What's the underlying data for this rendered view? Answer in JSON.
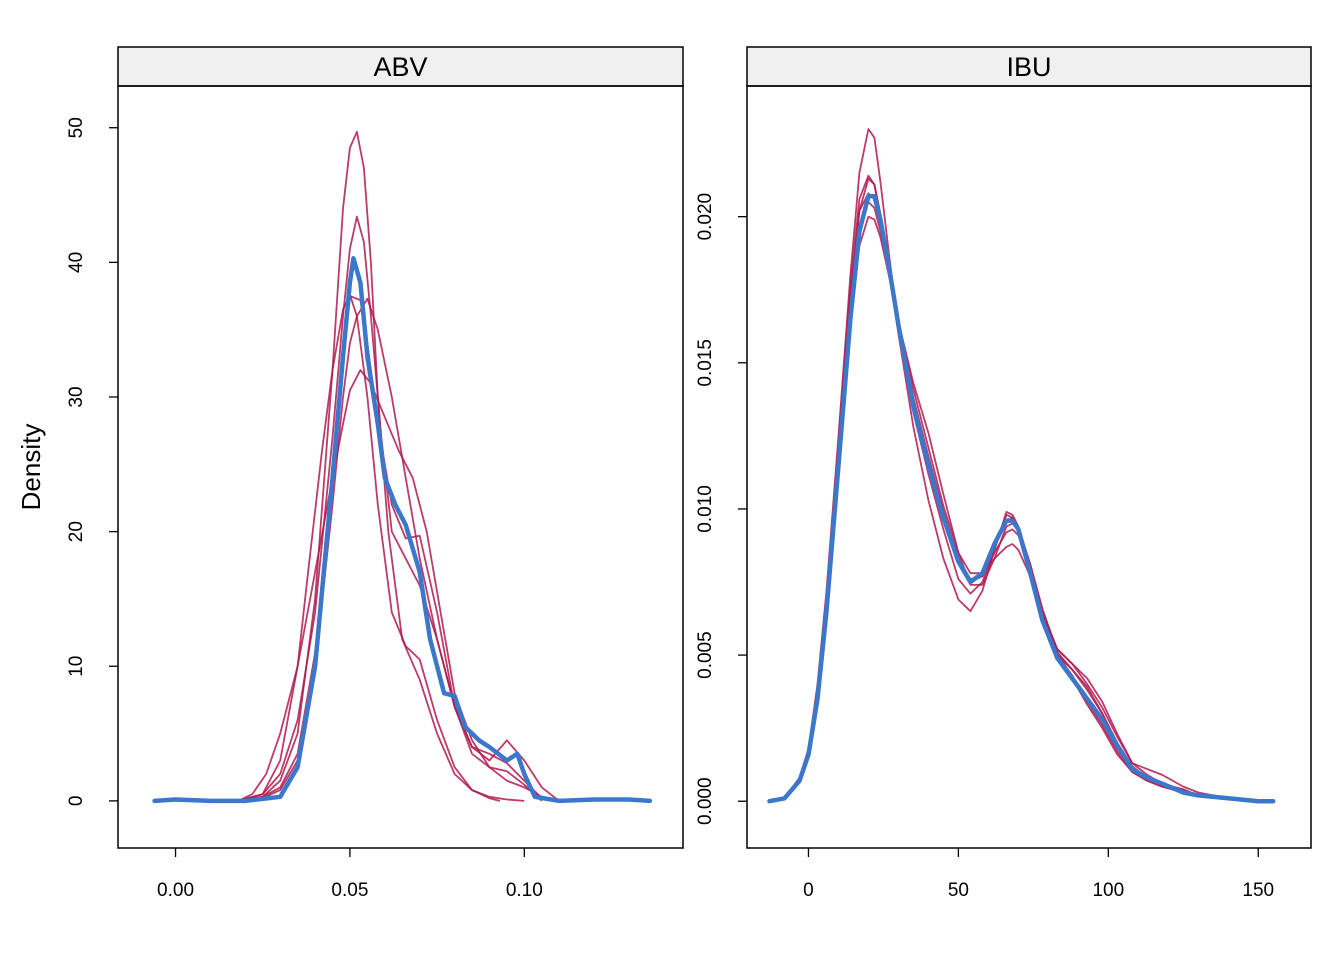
{
  "ylabel": "Density",
  "colors": {
    "observed": "#3B78CC",
    "replicated": "#B0194F",
    "strip": "#F0F0F0"
  },
  "chart_data": [
    {
      "type": "line",
      "title": "ABV",
      "xlim": [
        -0.0165,
        0.1455
      ],
      "ylim": [
        -3.5,
        53.1
      ],
      "xticks": [
        0.0,
        0.05,
        0.1
      ],
      "xtick_labels": [
        "0.00",
        "0.05",
        "0.10"
      ],
      "yticks": [
        0,
        10,
        20,
        30,
        40,
        50
      ],
      "ytick_labels": [
        "0",
        "10",
        "20",
        "30",
        "40",
        "50"
      ],
      "observed": {
        "x": [
          -0.006,
          0.0,
          0.01,
          0.02,
          0.03,
          0.035,
          0.04,
          0.045,
          0.048,
          0.05,
          0.051,
          0.053,
          0.055,
          0.058,
          0.06,
          0.063,
          0.066,
          0.07,
          0.073,
          0.077,
          0.08,
          0.083,
          0.087,
          0.09,
          0.095,
          0.098,
          0.1,
          0.103,
          0.11,
          0.12,
          0.13,
          0.136
        ],
        "y": [
          0,
          0.1,
          0,
          0,
          0.3,
          2.5,
          10,
          24,
          33,
          38.5,
          40.3,
          38.5,
          33,
          28,
          24,
          22,
          20.5,
          17,
          12,
          8,
          7.8,
          5.5,
          4.5,
          4,
          3,
          3.5,
          2,
          0.3,
          0,
          0.1,
          0.1,
          0
        ]
      },
      "replicates": [
        {
          "x": [
            0.018,
            0.025,
            0.03,
            0.035,
            0.04,
            0.045,
            0.048,
            0.05,
            0.052,
            0.054,
            0.056,
            0.058,
            0.061,
            0.065,
            0.07,
            0.075,
            0.08,
            0.085,
            0.09,
            0.093
          ],
          "y": [
            0,
            0.3,
            1.5,
            5,
            15,
            32,
            44,
            48.5,
            49.7,
            47,
            40,
            30,
            20,
            12,
            9,
            5,
            2,
            0.8,
            0.2,
            0
          ]
        },
        {
          "x": [
            0.018,
            0.025,
            0.03,
            0.035,
            0.04,
            0.045,
            0.048,
            0.05,
            0.052,
            0.054,
            0.056,
            0.059,
            0.062,
            0.065,
            0.07,
            0.075,
            0.08,
            0.085,
            0.09,
            0.095,
            0.1,
            0.105
          ],
          "y": [
            0,
            0.5,
            2,
            6,
            14,
            27,
            36,
            41,
            43.4,
            41.5,
            36,
            27,
            20,
            18.5,
            16,
            12,
            7,
            4,
            3.5,
            2.8,
            1.5,
            0.2
          ]
        },
        {
          "x": [
            0.018,
            0.025,
            0.03,
            0.035,
            0.04,
            0.045,
            0.048,
            0.05,
            0.053,
            0.055,
            0.058,
            0.062,
            0.066,
            0.07,
            0.075,
            0.08,
            0.085,
            0.09,
            0.095,
            0.1,
            0.105
          ],
          "y": [
            0,
            0.3,
            1,
            3.5,
            11,
            24,
            33,
            37.5,
            37.2,
            34,
            28,
            22,
            19.5,
            19.7,
            14,
            7,
            3.5,
            2.5,
            2.2,
            1.2,
            0
          ]
        },
        {
          "x": [
            0.018,
            0.025,
            0.03,
            0.035,
            0.04,
            0.045,
            0.048,
            0.05,
            0.052,
            0.055,
            0.058,
            0.062,
            0.066,
            0.07,
            0.075,
            0.08,
            0.085,
            0.09,
            0.095,
            0.1,
            0.105,
            0.11
          ],
          "y": [
            0,
            0.2,
            0.8,
            3,
            10,
            22,
            30,
            34,
            36,
            37.3,
            35,
            30,
            24,
            18,
            12,
            7,
            4,
            3,
            4.5,
            3,
            1,
            0
          ]
        },
        {
          "x": [
            0.018,
            0.022,
            0.026,
            0.03,
            0.035,
            0.04,
            0.045,
            0.048,
            0.05,
            0.053,
            0.056,
            0.06,
            0.064,
            0.068,
            0.072,
            0.076,
            0.08,
            0.085,
            0.09,
            0.095,
            0.1,
            0.105,
            0.11
          ],
          "y": [
            0,
            0.5,
            2,
            5,
            10,
            17,
            24,
            28,
            30.5,
            32,
            31,
            28.5,
            26,
            24,
            20,
            14,
            8,
            4.5,
            2.5,
            1.5,
            1,
            0.3,
            0
          ]
        },
        {
          "x": [
            0.018,
            0.025,
            0.03,
            0.035,
            0.038,
            0.042,
            0.045,
            0.048,
            0.05,
            0.052,
            0.055,
            0.058,
            0.062,
            0.066,
            0.07,
            0.075,
            0.08,
            0.085,
            0.09,
            0.095,
            0.1
          ],
          "y": [
            0,
            0.5,
            3,
            10,
            17,
            26,
            32,
            36.5,
            37.6,
            36,
            30,
            22,
            14,
            11.5,
            10.5,
            6,
            2.5,
            0.8,
            0.3,
            0.1,
            0
          ]
        }
      ]
    },
    {
      "type": "line",
      "title": "IBU",
      "xlim": [
        -20.5,
        167.6
      ],
      "ylim": [
        -0.0016,
        0.02447
      ],
      "xticks": [
        0,
        50,
        100,
        150
      ],
      "xtick_labels": [
        "0",
        "50",
        "100",
        "150"
      ],
      "yticks": [
        0.0,
        0.005,
        0.01,
        0.015,
        0.02
      ],
      "ytick_labels": [
        "0.000",
        "0.005",
        "0.010",
        "0.015",
        "0.020"
      ],
      "observed": {
        "x": [
          -13,
          -8,
          -3,
          0,
          3,
          6,
          10,
          14,
          17,
          20,
          22,
          24,
          27,
          30,
          35,
          40,
          45,
          50,
          54,
          58,
          62,
          66,
          68,
          70,
          74,
          78,
          83,
          88,
          93,
          98,
          103,
          108,
          113,
          118,
          125,
          130,
          140,
          150,
          155
        ],
        "y": [
          0,
          0.0001,
          0.0007,
          0.0016,
          0.0035,
          0.0065,
          0.0115,
          0.0165,
          0.0195,
          0.0207,
          0.0207,
          0.0199,
          0.0182,
          0.0163,
          0.0135,
          0.0115,
          0.0097,
          0.0082,
          0.0075,
          0.0078,
          0.0088,
          0.0096,
          0.0096,
          0.0093,
          0.0078,
          0.0062,
          0.0049,
          0.0042,
          0.0035,
          0.0028,
          0.0019,
          0.0011,
          0.0008,
          0.0006,
          0.0003,
          0.0002,
          0.0001,
          0,
          0
        ]
      },
      "replicates": [
        {
          "x": [
            -13,
            -8,
            -3,
            0,
            3,
            6,
            10,
            14,
            17,
            20,
            22,
            24,
            27,
            30,
            35,
            40,
            45,
            50,
            54,
            58,
            62,
            66,
            68,
            70,
            74,
            78,
            83,
            88,
            93,
            98,
            103,
            108,
            113,
            118,
            125,
            130,
            140,
            150,
            155
          ],
          "y": [
            0,
            0.0001,
            0.0008,
            0.0018,
            0.004,
            0.0072,
            0.0125,
            0.018,
            0.0215,
            0.023,
            0.0227,
            0.0212,
            0.0186,
            0.0162,
            0.0133,
            0.0112,
            0.0093,
            0.0076,
            0.0071,
            0.0075,
            0.0086,
            0.0098,
            0.0097,
            0.0094,
            0.008,
            0.0064,
            0.005,
            0.0043,
            0.0034,
            0.0026,
            0.0017,
            0.001,
            0.0007,
            0.0005,
            0.0003,
            0.0002,
            0.0001,
            0,
            0
          ]
        },
        {
          "x": [
            -13,
            -8,
            -3,
            0,
            3,
            6,
            10,
            14,
            17,
            20,
            22,
            24,
            27,
            30,
            35,
            40,
            45,
            50,
            54,
            58,
            62,
            66,
            68,
            70,
            74,
            78,
            83,
            88,
            93,
            98,
            103,
            108,
            113,
            118,
            125,
            130,
            140,
            150,
            155
          ],
          "y": [
            0,
            0.0001,
            0.0007,
            0.0016,
            0.0036,
            0.0068,
            0.012,
            0.0172,
            0.0202,
            0.0213,
            0.0211,
            0.0201,
            0.0183,
            0.0163,
            0.0137,
            0.0117,
            0.0099,
            0.0083,
            0.0076,
            0.0077,
            0.0085,
            0.0092,
            0.0093,
            0.0091,
            0.0079,
            0.0064,
            0.0051,
            0.0045,
            0.0038,
            0.003,
            0.002,
            0.0012,
            0.0008,
            0.0006,
            0.0004,
            0.0002,
            0.0001,
            0,
            0
          ]
        },
        {
          "x": [
            -13,
            -8,
            -3,
            0,
            3,
            6,
            10,
            14,
            17,
            20,
            22,
            24,
            27,
            30,
            35,
            40,
            45,
            50,
            54,
            58,
            62,
            66,
            68,
            70,
            74,
            78,
            83,
            88,
            93,
            98,
            103,
            108,
            113,
            118,
            125,
            130,
            140,
            150,
            155
          ],
          "y": [
            0,
            0.0001,
            0.0007,
            0.0015,
            0.0034,
            0.0064,
            0.0113,
            0.0162,
            0.019,
            0.02,
            0.0199,
            0.0193,
            0.0179,
            0.0164,
            0.0141,
            0.0121,
            0.0101,
            0.0085,
            0.0078,
            0.0078,
            0.0083,
            0.0087,
            0.0088,
            0.0086,
            0.0077,
            0.0064,
            0.0052,
            0.0047,
            0.004,
            0.0032,
            0.0022,
            0.0013,
            0.0009,
            0.0006,
            0.0004,
            0.0002,
            0.0001,
            0,
            0
          ]
        },
        {
          "x": [
            -13,
            -8,
            -3,
            0,
            3,
            6,
            10,
            14,
            17,
            20,
            22,
            24,
            27,
            30,
            35,
            40,
            45,
            50,
            54,
            58,
            62,
            66,
            68,
            70,
            74,
            78,
            83,
            88,
            93,
            98,
            103,
            108,
            113,
            118,
            125,
            130,
            140,
            150,
            155
          ],
          "y": [
            0,
            0.0001,
            0.0008,
            0.0017,
            0.0038,
            0.007,
            0.0122,
            0.0176,
            0.0206,
            0.0214,
            0.0211,
            0.02,
            0.0181,
            0.016,
            0.0128,
            0.0103,
            0.0083,
            0.0069,
            0.0065,
            0.0072,
            0.0086,
            0.0099,
            0.0098,
            0.0094,
            0.0081,
            0.0066,
            0.0051,
            0.0042,
            0.0033,
            0.0025,
            0.0016,
            0.001,
            0.0007,
            0.0005,
            0.0003,
            0.0002,
            0.0001,
            0,
            0
          ]
        },
        {
          "x": [
            -13,
            -8,
            -3,
            0,
            3,
            6,
            10,
            14,
            17,
            20,
            22,
            24,
            27,
            30,
            35,
            40,
            45,
            50,
            54,
            58,
            62,
            66,
            68,
            70,
            74,
            78,
            83,
            88,
            93,
            98,
            103,
            108,
            113,
            118,
            125,
            130,
            140,
            150,
            155
          ],
          "y": [
            0,
            0.0001,
            0.0007,
            0.0016,
            0.0036,
            0.0067,
            0.0118,
            0.0168,
            0.0197,
            0.0205,
            0.0203,
            0.0195,
            0.0181,
            0.0164,
            0.0143,
            0.0126,
            0.0105,
            0.0085,
            0.0074,
            0.0074,
            0.0083,
            0.0094,
            0.0095,
            0.0093,
            0.0081,
            0.0065,
            0.0052,
            0.0047,
            0.0042,
            0.0034,
            0.0023,
            0.0013,
            0.0011,
            0.0009,
            0.0005,
            0.0003,
            0.0001,
            0,
            0
          ]
        },
        {
          "x": [
            -13,
            -8,
            -3,
            0,
            3,
            6,
            10,
            14,
            17,
            20,
            22,
            24,
            27,
            30,
            35,
            40,
            45,
            50,
            54,
            58,
            62,
            66,
            68,
            70,
            74,
            78,
            83,
            88,
            93,
            98,
            103,
            108,
            113,
            118,
            125,
            130,
            140,
            150,
            155
          ],
          "y": [
            0,
            0.0001,
            0.0008,
            0.0017,
            0.0037,
            0.0069,
            0.012,
            0.0172,
            0.0202,
            0.0208,
            0.0206,
            0.0198,
            0.0182,
            0.0164,
            0.0138,
            0.0118,
            0.0099,
            0.0082,
            0.0075,
            0.0077,
            0.0087,
            0.0096,
            0.0097,
            0.0093,
            0.0079,
            0.0063,
            0.005,
            0.0045,
            0.0039,
            0.003,
            0.0019,
            0.0011,
            0.0008,
            0.0006,
            0.0003,
            0.0002,
            0.0001,
            0,
            0
          ]
        }
      ]
    }
  ]
}
